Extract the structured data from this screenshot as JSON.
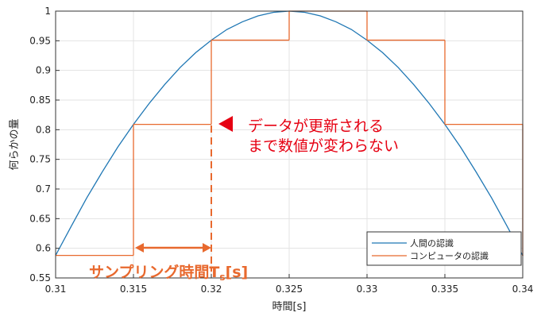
{
  "chart_data": {
    "type": "line",
    "xlabel": "時間[s]",
    "ylabel": "何らかの量",
    "xlim": [
      0.31,
      0.34
    ],
    "xticks": [
      0.31,
      0.315,
      0.32,
      0.325,
      0.33,
      0.335,
      0.34
    ],
    "ylim": [
      0.55,
      1
    ],
    "yticks": [
      0.55,
      0.6,
      0.65,
      0.7,
      0.75,
      0.8,
      0.85,
      0.9,
      0.95,
      1
    ],
    "grid": true,
    "legend": "lower right",
    "series": [
      {
        "name": "人間の認識",
        "color": "#1f77b4",
        "draw": "line",
        "x": [
          0.31,
          0.311,
          0.312,
          0.313,
          0.314,
          0.315,
          0.316,
          0.317,
          0.318,
          0.319,
          0.32,
          0.321,
          0.322,
          0.323,
          0.324,
          0.325,
          0.326,
          0.327,
          0.328,
          0.329,
          0.33,
          0.331,
          0.332,
          0.333,
          0.334,
          0.335,
          0.336,
          0.337,
          0.338,
          0.339,
          0.34
        ],
        "values": [
          0.588,
          0.637,
          0.685,
          0.729,
          0.771,
          0.809,
          0.844,
          0.876,
          0.905,
          0.93,
          0.951,
          0.969,
          0.982,
          0.992,
          0.998,
          1,
          0.998,
          0.992,
          0.982,
          0.969,
          0.951,
          0.93,
          0.905,
          0.876,
          0.844,
          0.809,
          0.771,
          0.729,
          0.685,
          0.637,
          0.588
        ]
      },
      {
        "name": "コンピュータの認識",
        "color": "#e8692e",
        "draw": "step",
        "x": [
          0.31,
          0.315,
          0.32,
          0.325,
          0.33,
          0.335,
          0.34
        ],
        "values": [
          0.588,
          0.809,
          0.951,
          1,
          0.951,
          0.809,
          0.588
        ]
      }
    ],
    "annotations": {
      "update": [
        "データが更新される",
        "まで数値が変わらない"
      ],
      "sampling": {
        "main": "サンプリング時間T",
        "sub": "s",
        "unit": "[s]"
      }
    }
  }
}
